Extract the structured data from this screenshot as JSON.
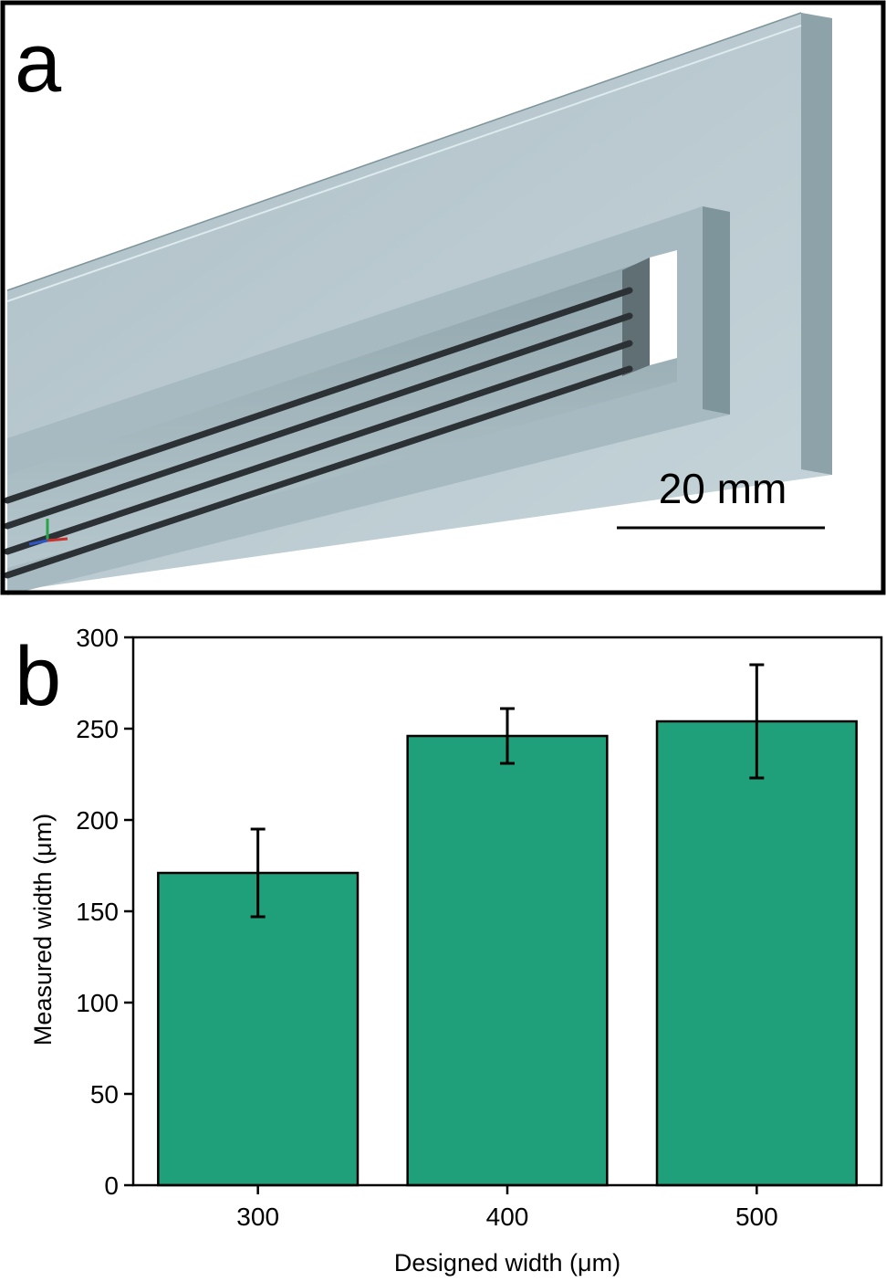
{
  "panel_a": {
    "label": "a",
    "scale_bar_text": "20 mm"
  },
  "panel_b": {
    "label": "b"
  },
  "colors": {
    "bar_fill": "#1fa07a",
    "panel_a_background": "#9fb7bf",
    "frame": "#000000"
  },
  "chart_data": {
    "type": "bar",
    "categories": [
      "300",
      "400",
      "500"
    ],
    "values": [
      171,
      246,
      254
    ],
    "errors": [
      24,
      15,
      31
    ],
    "xlabel": "Designed width (μm)",
    "ylabel": "Measured width (μm)",
    "ylim": [
      0,
      300
    ],
    "yticks": [
      0,
      50,
      100,
      150,
      200,
      250,
      300
    ],
    "grid": false
  }
}
